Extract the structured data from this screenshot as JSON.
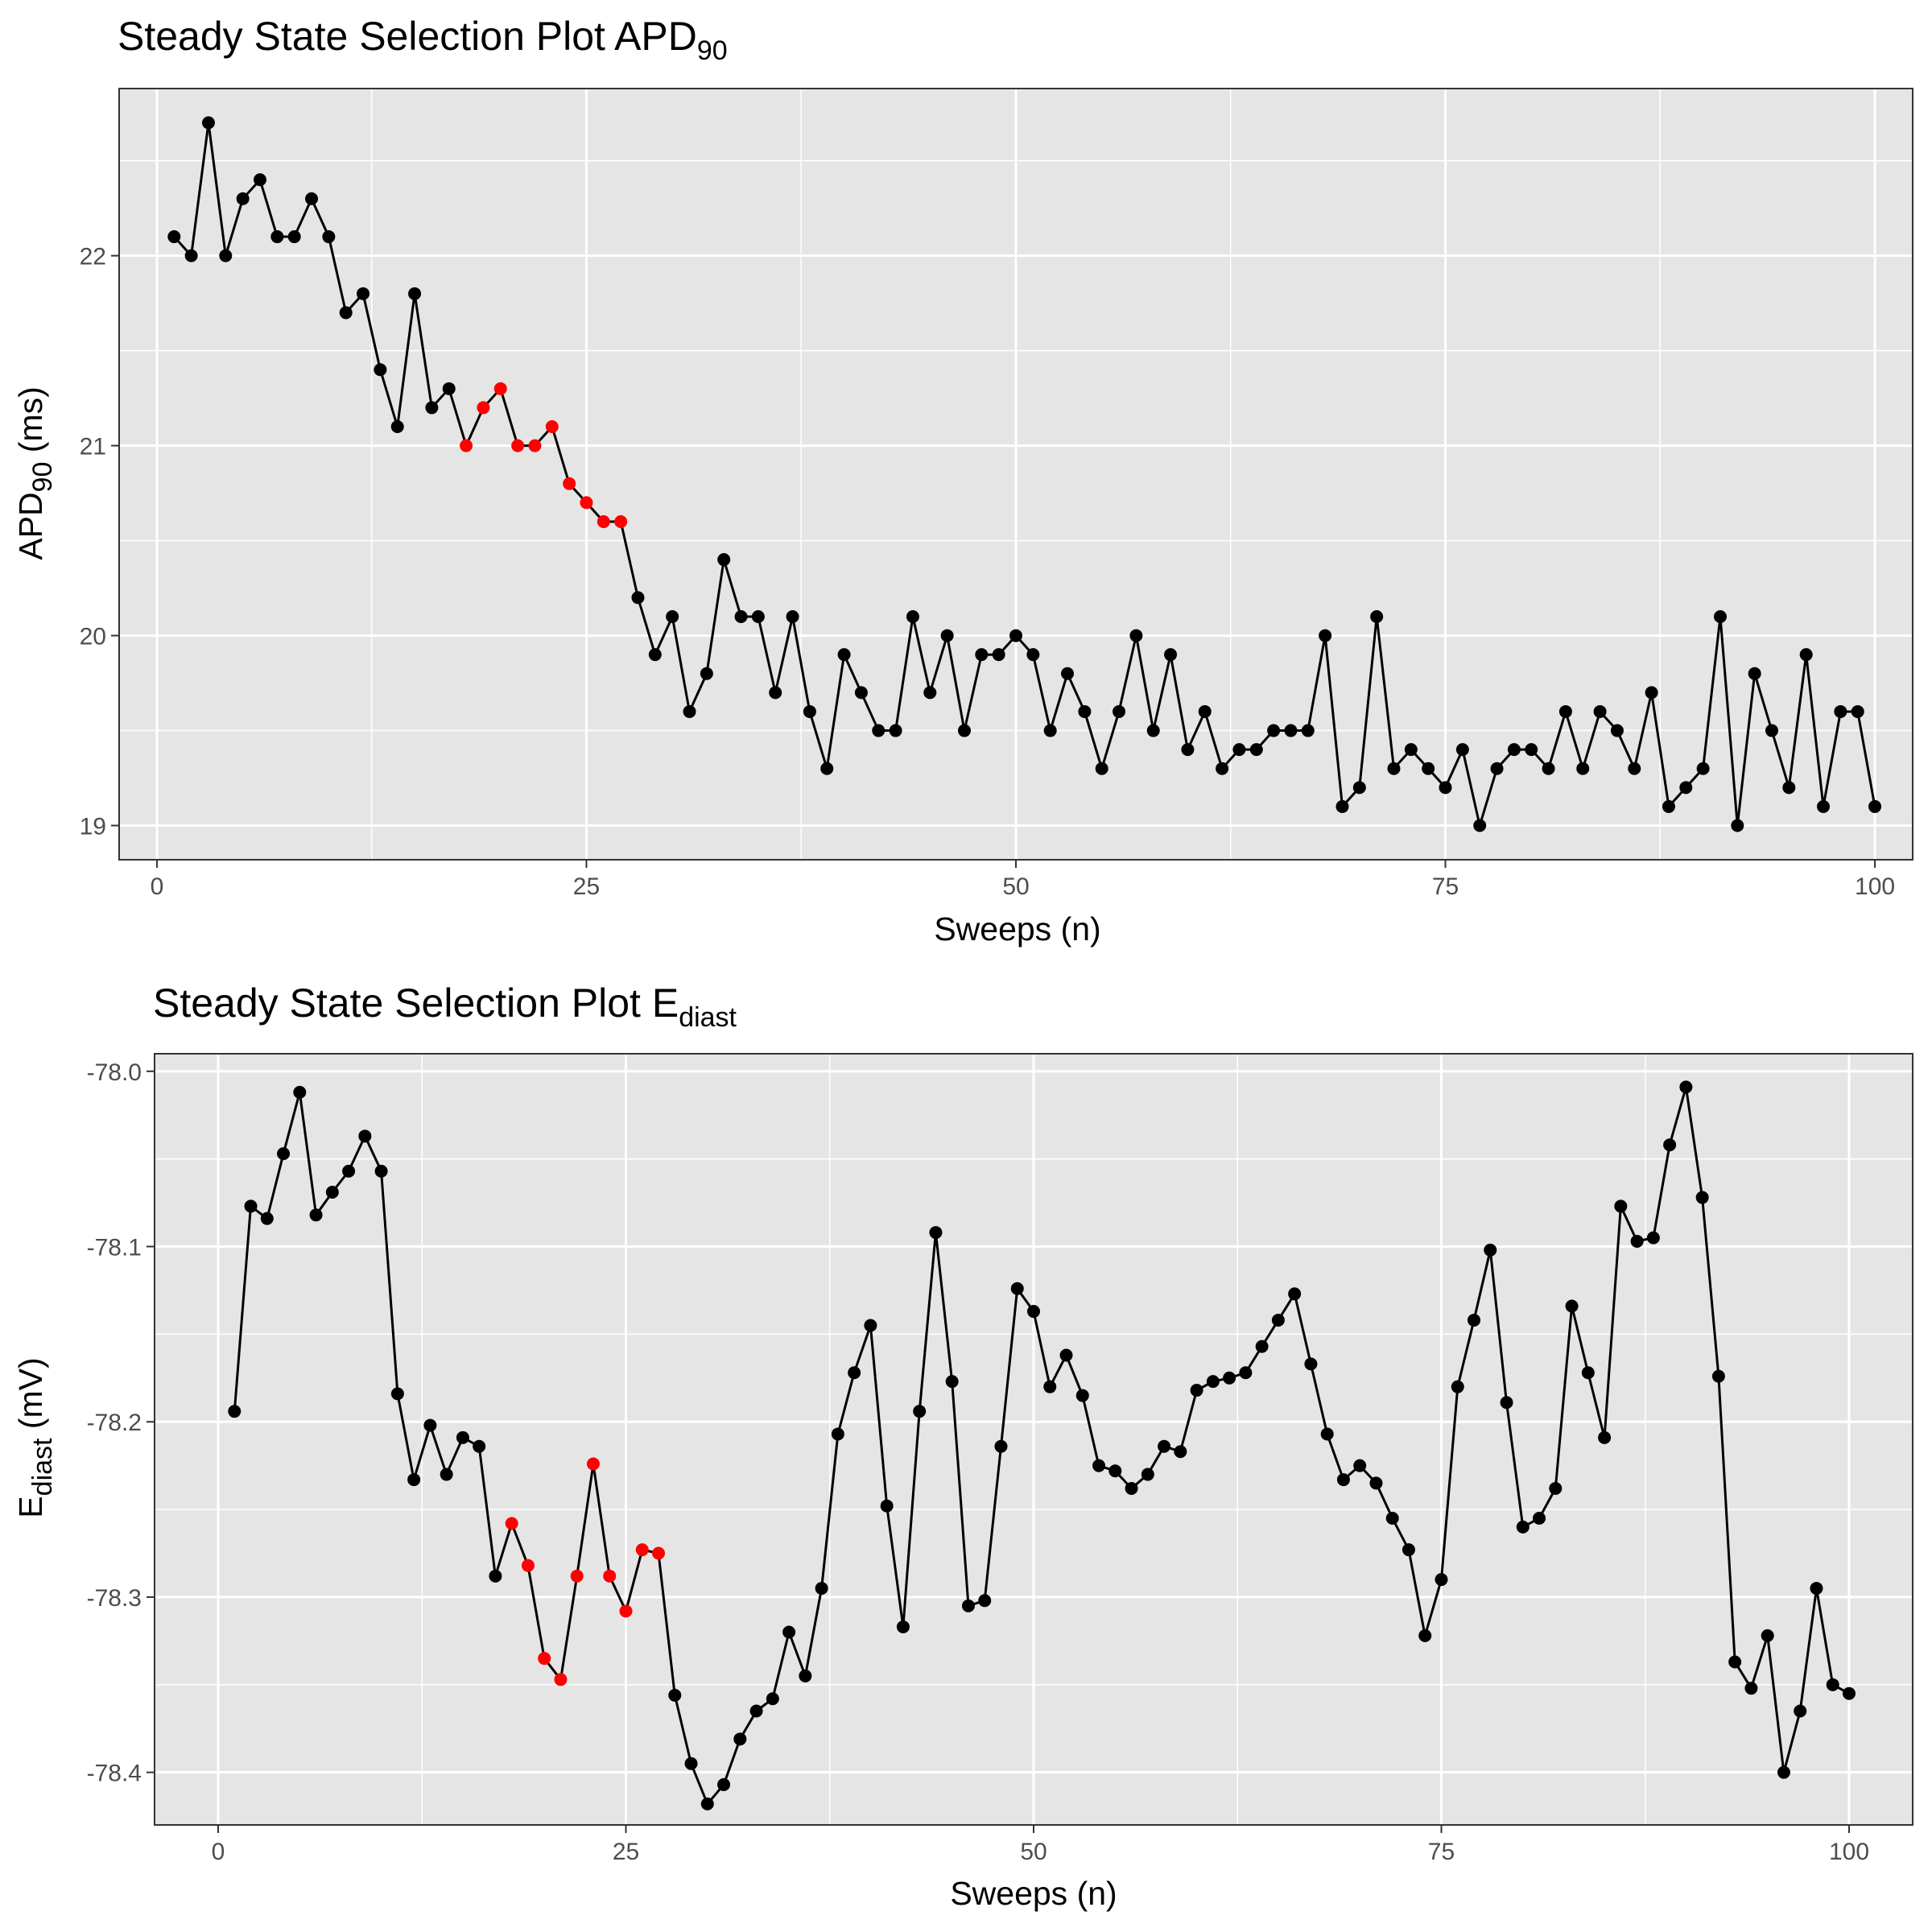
{
  "chart_data": [
    {
      "type": "line",
      "title_main": "Steady State Selection Plot APD",
      "title_sub": "90",
      "xlabel": "Sweeps (n)",
      "ylabel_main": "APD",
      "ylabel_sub": "90",
      "ylabel_suffix": " (ms)",
      "xlim": [
        -2.2,
        102.2
      ],
      "ylim": [
        18.82,
        22.88
      ],
      "x_ticks": [
        0,
        25,
        50,
        75,
        100
      ],
      "x_tick_labels": [
        "0",
        "25",
        "50",
        "75",
        "100"
      ],
      "y_ticks": [
        19,
        20,
        21,
        22
      ],
      "y_tick_labels": [
        "19",
        "20",
        "21",
        "22"
      ],
      "grid": true,
      "point_color": "#000000",
      "highlight_color": "#ff0000",
      "highlight_range": [
        18,
        27
      ],
      "x": [
        1,
        2,
        3,
        4,
        5,
        6,
        7,
        8,
        9,
        10,
        11,
        12,
        13,
        14,
        15,
        16,
        17,
        18,
        19,
        20,
        21,
        22,
        23,
        24,
        25,
        26,
        27,
        28,
        29,
        30,
        31,
        32,
        33,
        34,
        35,
        36,
        37,
        38,
        39,
        40,
        41,
        42,
        43,
        44,
        45,
        46,
        47,
        48,
        49,
        50,
        51,
        52,
        53,
        54,
        55,
        56,
        57,
        58,
        59,
        60,
        61,
        62,
        63,
        64,
        65,
        66,
        67,
        68,
        69,
        70,
        71,
        72,
        73,
        74,
        75,
        76,
        77,
        78,
        79,
        80,
        81,
        82,
        83,
        84,
        85,
        86,
        87,
        88,
        89,
        90,
        91,
        92,
        93,
        94,
        95,
        96,
        97,
        98,
        99,
        100
      ],
      "y": [
        22.1,
        22.0,
        22.7,
        22.0,
        22.3,
        22.4,
        22.1,
        22.1,
        22.3,
        22.1,
        21.7,
        21.8,
        21.4,
        21.1,
        21.8,
        21.2,
        21.3,
        21.0,
        21.2,
        21.3,
        21.0,
        21.0,
        21.1,
        20.8,
        20.7,
        20.6,
        20.6,
        20.2,
        19.9,
        20.1,
        19.6,
        19.8,
        20.4,
        20.1,
        20.1,
        19.7,
        20.1,
        19.6,
        19.3,
        19.9,
        19.7,
        19.5,
        19.5,
        20.1,
        19.7,
        20.0,
        19.5,
        19.9,
        19.9,
        20.0,
        19.9,
        19.5,
        19.8,
        19.6,
        19.3,
        19.6,
        20.0,
        19.5,
        19.9,
        19.4,
        19.6,
        19.3,
        19.4,
        19.4,
        19.5,
        19.5,
        19.5,
        20.0,
        19.1,
        19.2,
        20.1,
        19.3,
        19.4,
        19.3,
        19.2,
        19.4,
        19.0,
        19.3,
        19.4,
        19.4,
        19.3,
        19.6,
        19.3,
        19.6,
        19.5,
        19.3,
        19.7,
        19.1,
        19.2,
        19.3,
        20.1,
        19.0,
        19.8,
        19.5,
        19.2,
        19.9,
        19.1,
        19.6,
        19.6,
        19.1
      ]
    },
    {
      "type": "line",
      "title_main": "Steady State Selection Plot E",
      "title_sub": "diast",
      "xlabel": "Sweeps (n)",
      "ylabel_main": "E",
      "ylabel_sub": "diast",
      "ylabel_suffix": " (mV)",
      "xlim": [
        -3.9,
        103.9
      ],
      "ylim": [
        -78.43,
        -77.99
      ],
      "x_ticks": [
        0,
        25,
        50,
        75,
        100
      ],
      "x_tick_labels": [
        "0",
        "25",
        "50",
        "75",
        "100"
      ],
      "y_ticks": [
        -78.0,
        -78.1,
        -78.2,
        -78.3,
        -78.4
      ],
      "y_tick_labels": [
        "-78.0",
        "-78.1",
        "-78.2",
        "-78.3",
        "-78.4"
      ],
      "grid": true,
      "point_color": "#000000",
      "highlight_color": "#ff0000",
      "highlight_range": [
        18,
        27
      ],
      "x": [
        1,
        2,
        3,
        4,
        5,
        6,
        7,
        8,
        9,
        10,
        11,
        12,
        13,
        14,
        15,
        16,
        17,
        18,
        19,
        20,
        21,
        22,
        23,
        24,
        25,
        26,
        27,
        28,
        29,
        30,
        31,
        32,
        33,
        34,
        35,
        36,
        37,
        38,
        39,
        40,
        41,
        42,
        43,
        44,
        45,
        46,
        47,
        48,
        49,
        50,
        51,
        52,
        53,
        54,
        55,
        56,
        57,
        58,
        59,
        60,
        61,
        62,
        63,
        64,
        65,
        66,
        67,
        68,
        69,
        70,
        71,
        72,
        73,
        74,
        75,
        76,
        77,
        78,
        79,
        80,
        81,
        82,
        83,
        84,
        85,
        86,
        87,
        88,
        89,
        90,
        91,
        92,
        93,
        94,
        95,
        96,
        97,
        98,
        99,
        100
      ],
      "y": [
        -78.194,
        -78.077,
        -78.084,
        -78.047,
        -78.012,
        -78.082,
        -78.069,
        -78.057,
        -78.037,
        -78.057,
        -78.184,
        -78.233,
        -78.202,
        -78.23,
        -78.209,
        -78.214,
        -78.288,
        -78.258,
        -78.282,
        -78.335,
        -78.347,
        -78.288,
        -78.224,
        -78.288,
        -78.308,
        -78.273,
        -78.275,
        -78.356,
        -78.395,
        -78.418,
        -78.407,
        -78.381,
        -78.365,
        -78.358,
        -78.32,
        -78.345,
        -78.295,
        -78.207,
        -78.172,
        -78.145,
        -78.248,
        -78.317,
        -78.194,
        -78.092,
        -78.177,
        -78.305,
        -78.302,
        -78.214,
        -78.124,
        -78.137,
        -78.18,
        -78.162,
        -78.185,
        -78.225,
        -78.228,
        -78.238,
        -78.23,
        -78.214,
        -78.217,
        -78.182,
        -78.177,
        -78.175,
        -78.172,
        -78.157,
        -78.142,
        -78.127,
        -78.167,
        -78.207,
        -78.233,
        -78.225,
        -78.235,
        -78.255,
        -78.273,
        -78.322,
        -78.29,
        -78.18,
        -78.142,
        -78.102,
        -78.189,
        -78.26,
        -78.255,
        -78.238,
        -78.134,
        -78.172,
        -78.209,
        -78.077,
        -78.097,
        -78.095,
        -78.042,
        -78.009,
        -78.072,
        -78.174,
        -78.337,
        -78.352,
        -78.322,
        -78.4,
        -78.365,
        -78.295,
        -78.35,
        -78.355
      ]
    }
  ]
}
